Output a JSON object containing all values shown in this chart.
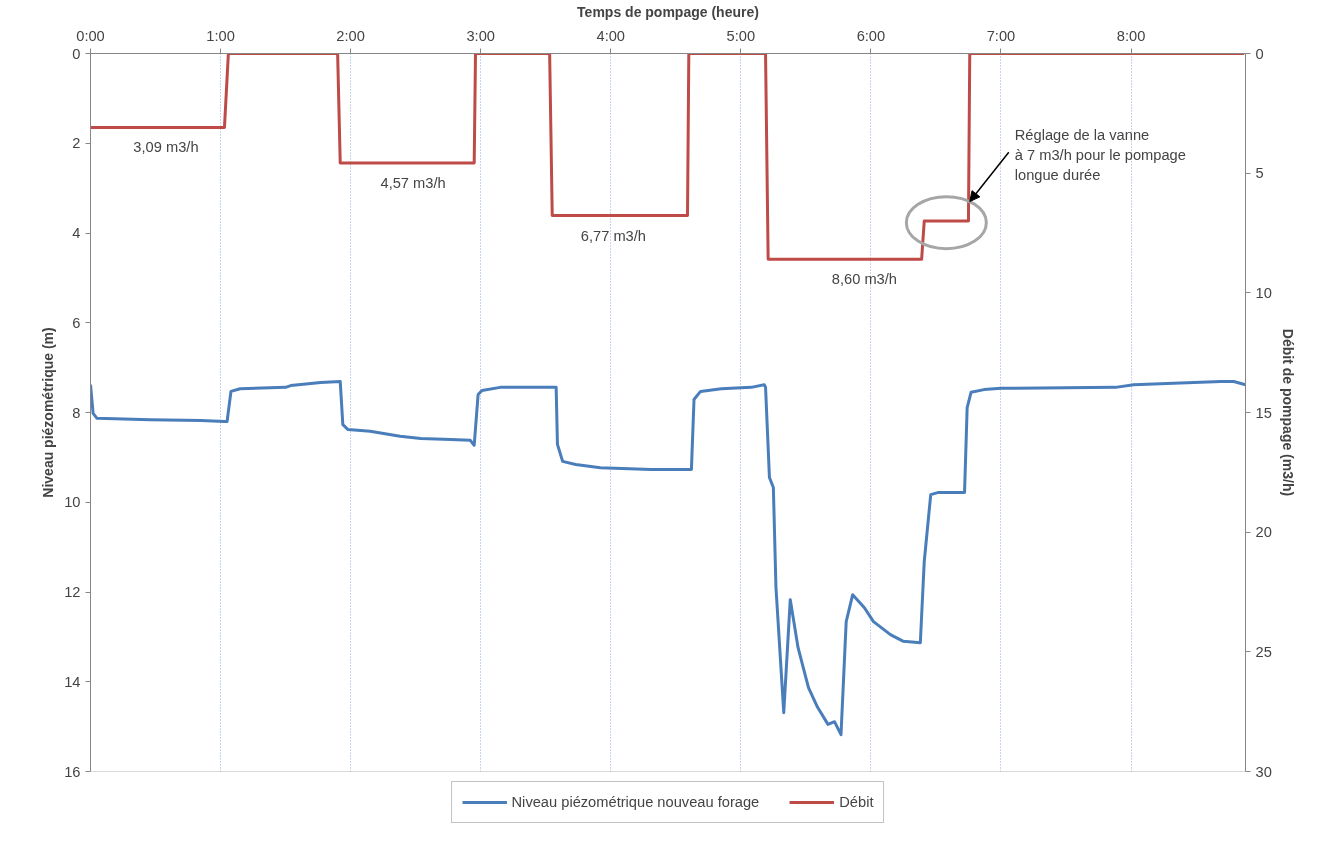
{
  "chart_data": {
    "type": "line",
    "xlabel": "Temps de pompage (heure)",
    "ylabel": "Niveau piézométrique (m)",
    "y2label": "Débit de pompage (m3/h)",
    "xlim": [
      0,
      8.88
    ],
    "ylim": [
      16,
      0
    ],
    "y2lim": [
      30,
      0
    ],
    "xticks": [
      {
        "value": 0,
        "label": "0:00"
      },
      {
        "value": 1,
        "label": "1:00"
      },
      {
        "value": 2,
        "label": "2:00"
      },
      {
        "value": 3,
        "label": "3:00"
      },
      {
        "value": 4,
        "label": "4:00"
      },
      {
        "value": 5,
        "label": "5:00"
      },
      {
        "value": 6,
        "label": "6:00"
      },
      {
        "value": 7,
        "label": "7:00"
      },
      {
        "value": 8,
        "label": "8:00"
      }
    ],
    "yticks": [
      0,
      2,
      4,
      6,
      8,
      10,
      12,
      14,
      16
    ],
    "y2ticks": [
      0,
      5,
      10,
      15,
      20,
      25,
      30
    ],
    "grid": "x",
    "legend": "bottom",
    "line_style": "solid",
    "marker": "none",
    "series": [
      {
        "name": "Niveau piézométrique nouveau forage",
        "color": "#4a7ebb",
        "x": [
          0,
          0.02,
          0.05,
          0.46,
          0.85,
          1.03,
          1.05,
          1.08,
          1.15,
          1.5,
          1.54,
          1.77,
          1.92,
          1.94,
          1.98,
          2.15,
          2.38,
          2.54,
          2.77,
          2.92,
          2.95,
          2.98,
          3.01,
          3.15,
          3.58,
          3.59,
          3.63,
          3.73,
          3.92,
          4.31,
          4.62,
          4.64,
          4.69,
          4.85,
          5.08,
          5.18,
          5.19,
          5.22,
          5.25,
          5.27,
          5.33,
          5.38,
          5.44,
          5.52,
          5.59,
          5.67,
          5.72,
          5.77,
          5.81,
          5.86,
          5.95,
          6.02,
          6.15,
          6.25,
          6.38,
          6.41,
          6.46,
          6.52,
          6.72,
          6.74,
          6.77,
          6.87,
          7.0,
          7.88,
          8.02,
          8.69,
          8.79,
          8.88
        ],
        "values": [
          7.38,
          8.02,
          8.13,
          8.16,
          8.18,
          8.2,
          8.2,
          7.53,
          7.47,
          7.44,
          7.4,
          7.33,
          7.31,
          8.27,
          8.38,
          8.42,
          8.53,
          8.58,
          8.6,
          8.62,
          8.73,
          7.6,
          7.51,
          7.44,
          7.44,
          8.71,
          9.09,
          9.16,
          9.23,
          9.27,
          9.27,
          7.71,
          7.53,
          7.47,
          7.44,
          7.38,
          7.44,
          9.45,
          9.67,
          11.9,
          14.69,
          12.17,
          13.24,
          14.13,
          14.57,
          14.95,
          14.89,
          15.18,
          12.66,
          12.06,
          12.35,
          12.66,
          12.95,
          13.1,
          13.13,
          11.32,
          9.83,
          9.78,
          9.78,
          7.89,
          7.55,
          7.49,
          7.46,
          7.44,
          7.38,
          7.31,
          7.31,
          7.38
        ]
      },
      {
        "name": "Débit",
        "color": "#be4b48",
        "axis": "y2",
        "x": [
          0,
          0.58,
          1.03,
          1.06,
          1.9,
          1.92,
          2.48,
          2.95,
          2.96,
          3.53,
          3.55,
          4.02,
          4.59,
          4.6,
          5.19,
          5.21,
          5.95,
          6.39,
          6.41,
          6.75,
          6.76,
          8.87
        ],
        "values": [
          3.09,
          3.09,
          3.09,
          0,
          0,
          4.57,
          4.57,
          4.57,
          0,
          0,
          6.77,
          6.77,
          6.77,
          0,
          0,
          8.6,
          8.6,
          8.6,
          7,
          7,
          0,
          0
        ],
        "value_labels": [
          null,
          "3,09 m3/h",
          null,
          null,
          null,
          null,
          "4,57 m3/h",
          null,
          null,
          null,
          null,
          "6,77 m3/h",
          null,
          null,
          null,
          null,
          "8,60 m3/h",
          null,
          null,
          null,
          null,
          null
        ]
      }
    ],
    "annotations": [
      {
        "text": "Réglage de la vanne\nà 7 m3/h pour le pompage\nlongue durée",
        "x": 6.76,
        "y": 3.3
      }
    ]
  }
}
